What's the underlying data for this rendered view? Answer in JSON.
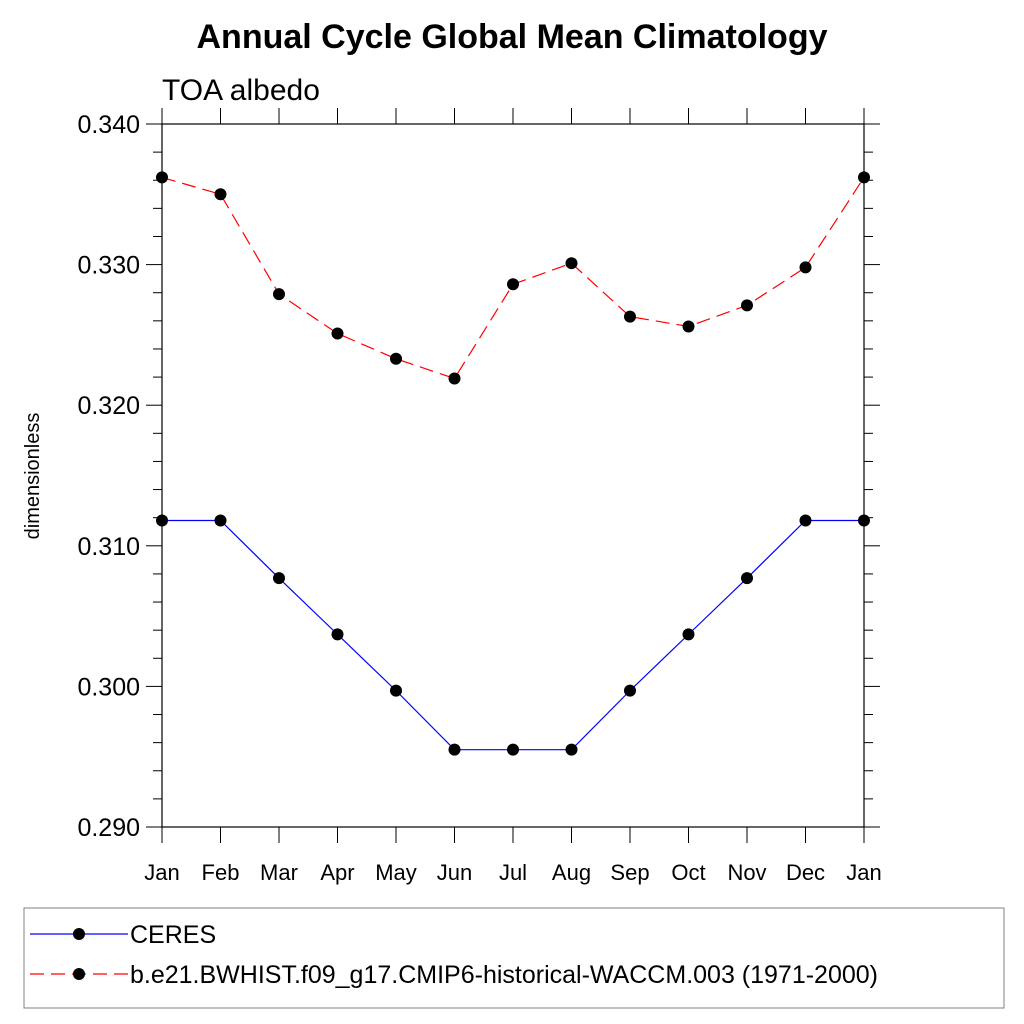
{
  "chart_data": {
    "type": "line",
    "title": "Annual Cycle Global Mean Climatology",
    "subtitle": "TOA albedo",
    "ylabel": "dimensionless",
    "xlabel": "",
    "categories": [
      "Jan",
      "Feb",
      "Mar",
      "Apr",
      "May",
      "Jun",
      "Jul",
      "Aug",
      "Sep",
      "Oct",
      "Nov",
      "Dec",
      "Jan"
    ],
    "ylim": [
      0.29,
      0.34
    ],
    "yticks": [
      "0.290",
      "0.300",
      "0.310",
      "0.320",
      "0.330",
      "0.340"
    ],
    "grid": false,
    "legend_position": "bottom",
    "series": [
      {
        "name": "CERES",
        "color": "#0000ff",
        "line_style": "solid",
        "marker": "filled-circle",
        "values": [
          0.3118,
          0.3118,
          0.3077,
          0.3037,
          0.2997,
          0.2955,
          0.2955,
          0.2955,
          0.2997,
          0.3037,
          0.3077,
          0.3118,
          0.3118
        ]
      },
      {
        "name": "b.e21.BWHIST.f09_g17.CMIP6-historical-WACCM.003 (1971-2000)",
        "color": "#ff0000",
        "line_style": "dashed",
        "marker": "filled-circle",
        "values": [
          0.3362,
          0.335,
          0.3279,
          0.3251,
          0.3233,
          0.3219,
          0.3286,
          0.3301,
          0.3263,
          0.3256,
          0.3271,
          0.3298,
          0.3362
        ]
      }
    ]
  }
}
